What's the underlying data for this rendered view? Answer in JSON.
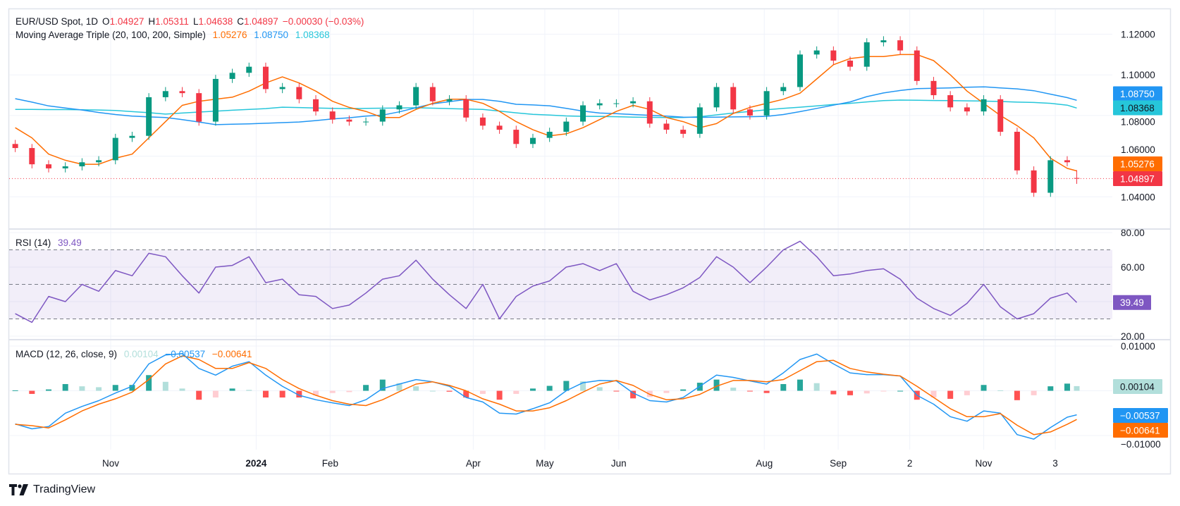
{
  "header": {
    "symbol": "EUR/USD Spot, 1D",
    "o_label": "O",
    "open": "1.04927",
    "h_label": "H",
    "high": "1.05311",
    "l_label": "L",
    "low": "1.04638",
    "c_label": "C",
    "close": "1.04897",
    "change": "−0.00030 (−0.03%)"
  },
  "ma_legend": {
    "title": "Moving Average Triple (20, 100, 200, Simple)",
    "ma20": "1.05276",
    "ma100": "1.08750",
    "ma200": "1.08368"
  },
  "rsi_legend": {
    "title": "RSI (14)",
    "value": "39.49"
  },
  "macd_legend": {
    "title": "MACD (12, 26, close, 9)",
    "hist": "0.00104",
    "macd": "−0.00537",
    "signal": "−0.00641"
  },
  "price_axis": [
    {
      "label": "1.12000",
      "value": 1.12
    },
    {
      "label": "1.10000",
      "value": 1.1
    },
    {
      "label": "1.08000",
      "value": 1.08
    },
    {
      "label": "1.06000",
      "value": 1.06
    },
    {
      "label": "1.04000",
      "value": 1.04
    }
  ],
  "rsi_axis": [
    {
      "label": "80.00",
      "value": 80
    },
    {
      "label": "60.00",
      "value": 60
    },
    {
      "label": "20.00",
      "value": 20
    }
  ],
  "macd_axis": [
    {
      "label": "0.01000",
      "value": 0.01
    },
    {
      "label": "−0.01000",
      "value": -0.01
    }
  ],
  "time_axis": [
    {
      "label": "Nov",
      "date": "2023-11-01"
    },
    {
      "label": "2024",
      "date": "2024-01-01",
      "bold": true
    },
    {
      "label": "Feb",
      "date": "2024-02-01"
    },
    {
      "label": "Apr",
      "date": "2024-04-01"
    },
    {
      "label": "May",
      "date": "2024-05-01"
    },
    {
      "label": "Jun",
      "date": "2024-06-01"
    },
    {
      "label": "Aug",
      "date": "2024-08-01"
    },
    {
      "label": "Sep",
      "date": "2024-09-01"
    },
    {
      "label": "2",
      "date": "2024-10-01"
    },
    {
      "label": "Nov",
      "date": "2024-11-01"
    },
    {
      "label": "3",
      "date": "2024-12-01"
    }
  ],
  "price_tags": [
    {
      "label": "1.08750",
      "value": 1.0875,
      "bg": "#2196f3",
      "fg": "#ffffff"
    },
    {
      "label": "1.08368",
      "value": 1.08368,
      "bg": "#26c6da",
      "fg": "#131722"
    },
    {
      "label": "1.05276",
      "value": 1.05276,
      "bg": "#ff6d00",
      "fg": "#ffffff"
    },
    {
      "label": "1.04897",
      "value": 1.04897,
      "bg": "#f23645",
      "fg": "#ffffff"
    }
  ],
  "rsi_tag": {
    "label": "39.49",
    "value": 39.49,
    "bg": "#7e57c2",
    "fg": "#ffffff"
  },
  "macd_tags": [
    {
      "label": "0.00104",
      "value": 0.00104,
      "bg": "#b2dfdb",
      "fg": "#131722"
    },
    {
      "label": "−0.00537",
      "value": -0.00537,
      "bg": "#2196f3",
      "fg": "#ffffff"
    },
    {
      "label": "−0.00641",
      "value": -0.00641,
      "bg": "#ff6d00",
      "fg": "#ffffff"
    }
  ],
  "branding": "TradingView",
  "colors": {
    "up": "#089981",
    "down": "#f23645",
    "ma20": "#ff6d00",
    "ma100": "#2196f3",
    "ma200": "#26c6da",
    "rsi": "#7e57c2",
    "rsi_band": "#7e57c2",
    "macd": "#2196f3",
    "signal": "#ff6d00",
    "hist_up_strong": "#26a69a",
    "hist_up_weak": "#b2dfdb",
    "hist_dn_strong": "#ff5252",
    "hist_dn_weak": "#ffcdd2",
    "grid": "#f0f3fa",
    "border": "#e0e3eb"
  },
  "chart_data": {
    "type": "candlestick",
    "interval": "1D",
    "price_range": [
      1.024,
      1.132
    ],
    "rsi_range": [
      18,
      82
    ],
    "rsi_levels": [
      70,
      50,
      30
    ],
    "macd_range": [
      -0.0131,
      0.0114
    ],
    "dates": [
      "2023-09-22",
      "2023-09-29",
      "2023-10-06",
      "2023-10-13",
      "2023-10-20",
      "2023-10-27",
      "2023-11-03",
      "2023-11-10",
      "2023-11-17",
      "2023-11-24",
      "2023-12-01",
      "2023-12-08",
      "2023-12-15",
      "2023-12-22",
      "2023-12-29",
      "2024-01-05",
      "2024-01-12",
      "2024-01-19",
      "2024-01-26",
      "2024-02-02",
      "2024-02-09",
      "2024-02-16",
      "2024-02-23",
      "2024-03-01",
      "2024-03-08",
      "2024-03-15",
      "2024-03-22",
      "2024-03-29",
      "2024-04-05",
      "2024-04-12",
      "2024-04-19",
      "2024-04-26",
      "2024-05-03",
      "2024-05-10",
      "2024-05-17",
      "2024-05-24",
      "2024-05-31",
      "2024-06-07",
      "2024-06-14",
      "2024-06-21",
      "2024-06-28",
      "2024-07-05",
      "2024-07-12",
      "2024-07-19",
      "2024-07-26",
      "2024-08-02",
      "2024-08-09",
      "2024-08-16",
      "2024-08-23",
      "2024-08-30",
      "2024-09-06",
      "2024-09-13",
      "2024-09-20",
      "2024-09-27",
      "2024-10-04",
      "2024-10-11",
      "2024-10-18",
      "2024-10-25",
      "2024-11-01",
      "2024-11-08",
      "2024-11-15",
      "2024-11-22",
      "2024-11-29",
      "2024-12-06",
      "2024-12-10"
    ],
    "close": [
      1.064,
      1.056,
      1.054,
      1.055,
      1.057,
      1.058,
      1.069,
      1.07,
      1.089,
      1.092,
      1.091,
      1.077,
      1.098,
      1.101,
      1.104,
      1.093,
      1.094,
      1.088,
      1.082,
      1.078,
      1.077,
      1.077,
      1.083,
      1.085,
      1.094,
      1.087,
      1.088,
      1.079,
      1.075,
      1.073,
      1.066,
      1.069,
      1.072,
      1.077,
      1.085,
      1.086,
      1.086,
      1.087,
      1.076,
      1.073,
      1.071,
      1.084,
      1.094,
      1.083,
      1.08,
      1.092,
      1.094,
      1.11,
      1.112,
      1.107,
      1.104,
      1.116,
      1.117,
      1.112,
      1.097,
      1.09,
      1.084,
      1.082,
      1.088,
      1.072,
      1.053,
      1.042,
      1.058,
      1.057,
      1.04897
    ],
    "ma20": [
      1.074,
      1.069,
      1.061,
      1.058,
      1.056,
      1.056,
      1.059,
      1.061,
      1.069,
      1.077,
      1.085,
      1.087,
      1.088,
      1.089,
      1.092,
      1.096,
      1.099,
      1.096,
      1.092,
      1.087,
      1.084,
      1.082,
      1.079,
      1.079,
      1.083,
      1.086,
      1.088,
      1.088,
      1.086,
      1.082,
      1.077,
      1.073,
      1.07,
      1.071,
      1.074,
      1.078,
      1.082,
      1.085,
      1.083,
      1.079,
      1.077,
      1.074,
      1.076,
      1.081,
      1.084,
      1.086,
      1.088,
      1.091,
      1.098,
      1.105,
      1.108,
      1.109,
      1.109,
      1.11,
      1.11,
      1.107,
      1.1,
      1.092,
      1.086,
      1.08,
      1.075,
      1.069,
      1.059,
      1.054,
      1.05276
    ],
    "ma100": [
      1.0883,
      1.0866,
      1.0847,
      1.0837,
      1.0827,
      1.0815,
      1.0805,
      1.0797,
      1.0793,
      1.079,
      1.078,
      1.0768,
      1.0755,
      1.0757,
      1.0759,
      1.0762,
      1.0765,
      1.0768,
      1.0775,
      1.0783,
      1.0789,
      1.0797,
      1.0802,
      1.0818,
      1.0838,
      1.0858,
      1.0868,
      1.0879,
      1.0879,
      1.087,
      1.0855,
      1.0852,
      1.0848,
      1.0835,
      1.0822,
      1.0812,
      1.0809,
      1.0805,
      1.0801,
      1.0797,
      1.0792,
      1.0791,
      1.0792,
      1.0793,
      1.0794,
      1.0796,
      1.0805,
      1.0819,
      1.0835,
      1.0851,
      1.0867,
      1.0893,
      1.0911,
      1.0923,
      1.0932,
      1.0934,
      1.0936,
      1.0939,
      1.0941,
      1.0936,
      1.0931,
      1.0922,
      1.0905,
      1.0888,
      1.0875
    ],
    "ma200": [
      1.083,
      1.083,
      1.0829,
      1.0829,
      1.0828,
      1.0827,
      1.0825,
      1.0819,
      1.0814,
      1.0807,
      1.0812,
      1.0817,
      1.0821,
      1.0826,
      1.083,
      1.0834,
      1.0841,
      1.0839,
      1.0837,
      1.0835,
      1.0834,
      1.0835,
      1.0836,
      1.0837,
      1.0838,
      1.0836,
      1.0834,
      1.0832,
      1.083,
      1.0822,
      1.0813,
      1.0806,
      1.0802,
      1.0798,
      1.0796,
      1.0795,
      1.0794,
      1.0792,
      1.0791,
      1.079,
      1.079,
      1.0794,
      1.0803,
      1.0812,
      1.082,
      1.0828,
      1.0835,
      1.0841,
      1.0847,
      1.0854,
      1.086,
      1.0867,
      1.0873,
      1.0876,
      1.0875,
      1.0874,
      1.0873,
      1.0872,
      1.0871,
      1.0869,
      1.0866,
      1.0864,
      1.086,
      1.0851,
      1.08368
    ],
    "rsi": [
      33,
      28,
      43,
      40,
      50,
      46,
      58,
      55,
      68,
      66,
      55,
      45,
      60,
      61,
      66,
      51,
      53,
      44,
      43,
      36,
      38,
      45,
      53,
      55,
      64,
      53,
      44,
      36,
      50,
      30,
      43,
      49,
      52,
      60,
      62,
      58,
      62,
      46,
      41,
      44,
      48,
      54,
      66,
      60,
      51,
      60,
      70,
      75,
      66,
      55,
      56,
      58,
      59,
      53,
      42,
      36,
      32,
      39,
      50,
      37,
      30,
      33,
      42,
      45,
      39.49
    ],
    "macd": [
      -0.0074,
      -0.0085,
      -0.008,
      -0.005,
      -0.0035,
      -0.0022,
      -0.0005,
      0.001,
      0.006,
      0.008,
      0.0083,
      0.005,
      0.0035,
      0.0055,
      0.0065,
      0.0035,
      0.001,
      -0.001,
      -0.002,
      -0.0027,
      -0.0033,
      -0.002,
      0.0005,
      0.0015,
      0.0025,
      0.002,
      0.001,
      -0.0015,
      -0.0025,
      -0.005,
      -0.0052,
      -0.004,
      -0.0027,
      0.0,
      0.0018,
      0.0023,
      0.0022,
      -0.0005,
      -0.0022,
      -0.0025,
      -0.0015,
      0.001,
      0.0035,
      0.003,
      0.0022,
      0.0015,
      0.004,
      0.007,
      0.0082,
      0.006,
      0.004,
      0.0036,
      0.0036,
      0.0033,
      -0.001,
      -0.003,
      -0.0058,
      -0.0068,
      -0.0045,
      -0.005,
      -0.0098,
      -0.0108,
      -0.0082,
      -0.0059,
      -0.00537
    ],
    "signal": [
      -0.0075,
      -0.0078,
      -0.0083,
      -0.0065,
      -0.0045,
      -0.003,
      -0.0018,
      -0.0003,
      0.0025,
      0.006,
      0.0078,
      0.007,
      0.005,
      0.005,
      0.0063,
      0.005,
      0.0025,
      0.0005,
      -0.001,
      -0.0022,
      -0.003,
      -0.0033,
      -0.002,
      -0.0002,
      0.0015,
      0.002,
      0.0012,
      0.0,
      -0.0018,
      -0.003,
      -0.0045,
      -0.0045,
      -0.0038,
      -0.0022,
      -0.0003,
      0.0015,
      0.0023,
      0.0012,
      -0.0008,
      -0.002,
      -0.0018,
      -0.0008,
      0.001,
      0.0023,
      0.0023,
      0.002,
      0.0025,
      0.0045,
      0.0065,
      0.0068,
      0.005,
      0.0042,
      0.0037,
      0.0033,
      0.001,
      -0.0015,
      -0.004,
      -0.0058,
      -0.0058,
      -0.0051,
      -0.0077,
      -0.0098,
      -0.0092,
      -0.0075,
      -0.00641
    ]
  }
}
